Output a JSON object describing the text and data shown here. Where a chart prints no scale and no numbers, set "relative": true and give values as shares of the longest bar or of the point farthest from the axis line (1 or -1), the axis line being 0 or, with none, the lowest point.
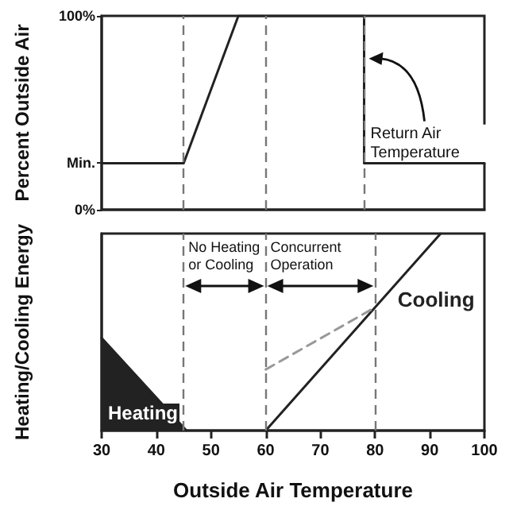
{
  "chart_data": [
    {
      "type": "line",
      "ylabel": "Percent Outside Air",
      "annotations": [
        "Return Air Temperature"
      ],
      "series": [
        {
          "color": "#222222",
          "x": [
            30,
            45,
            55,
            78,
            78,
            100
          ],
          "values": [
            24,
            24,
            100,
            100,
            24,
            24
          ]
        }
      ],
      "xlim": [
        30,
        100
      ],
      "ylim": [
        0,
        100
      ],
      "yticks": [
        {
          "value": 0,
          "label": "0%"
        },
        {
          "value": 24,
          "label": "Min."
        },
        {
          "value": 100,
          "label": "100%"
        }
      ],
      "tick_labels": "y",
      "ref_lines": [
        {
          "axis": "x",
          "value": 45,
          "color": "#777777",
          "line_style": "dashed"
        },
        {
          "axis": "x",
          "value": 60,
          "color": "#777777",
          "line_style": "dashed"
        },
        {
          "axis": "x",
          "value": 78,
          "color": "#777777",
          "line_style": "dashed"
        }
      ],
      "grid": false,
      "legend": false
    },
    {
      "type": "line",
      "ylabel": "Heating/Cooling Energy",
      "xlabel": "Outside Air Temperature",
      "relative": true,
      "annotations": [
        "No Heating or Cooling",
        "Concurrent Operation"
      ],
      "series": [
        {
          "name": "Heating",
          "type": "area",
          "color": "#222222",
          "x": [
            30,
            45.5
          ],
          "values": [
            0.47,
            0
          ]
        },
        {
          "name": "Cooling",
          "color": "#222222",
          "x": [
            60,
            92
          ],
          "values": [
            0,
            1
          ]
        },
        {
          "color": "#999999",
          "line_style": "dashed",
          "x": [
            60,
            80
          ],
          "values": [
            0.31,
            0.625
          ]
        }
      ],
      "xlim": [
        30,
        100
      ],
      "xticks": [
        30,
        40,
        50,
        60,
        70,
        80,
        90,
        100
      ],
      "tick_labels": "x",
      "ref_lines": [
        {
          "axis": "x",
          "value": 45,
          "color": "#777777",
          "line_style": "dashed"
        },
        {
          "axis": "x",
          "value": 60,
          "color": "#777777",
          "line_style": "dashed"
        },
        {
          "axis": "x",
          "value": 80,
          "color": "#777777",
          "line_style": "dashed"
        }
      ],
      "grid": false,
      "legend": false
    }
  ]
}
